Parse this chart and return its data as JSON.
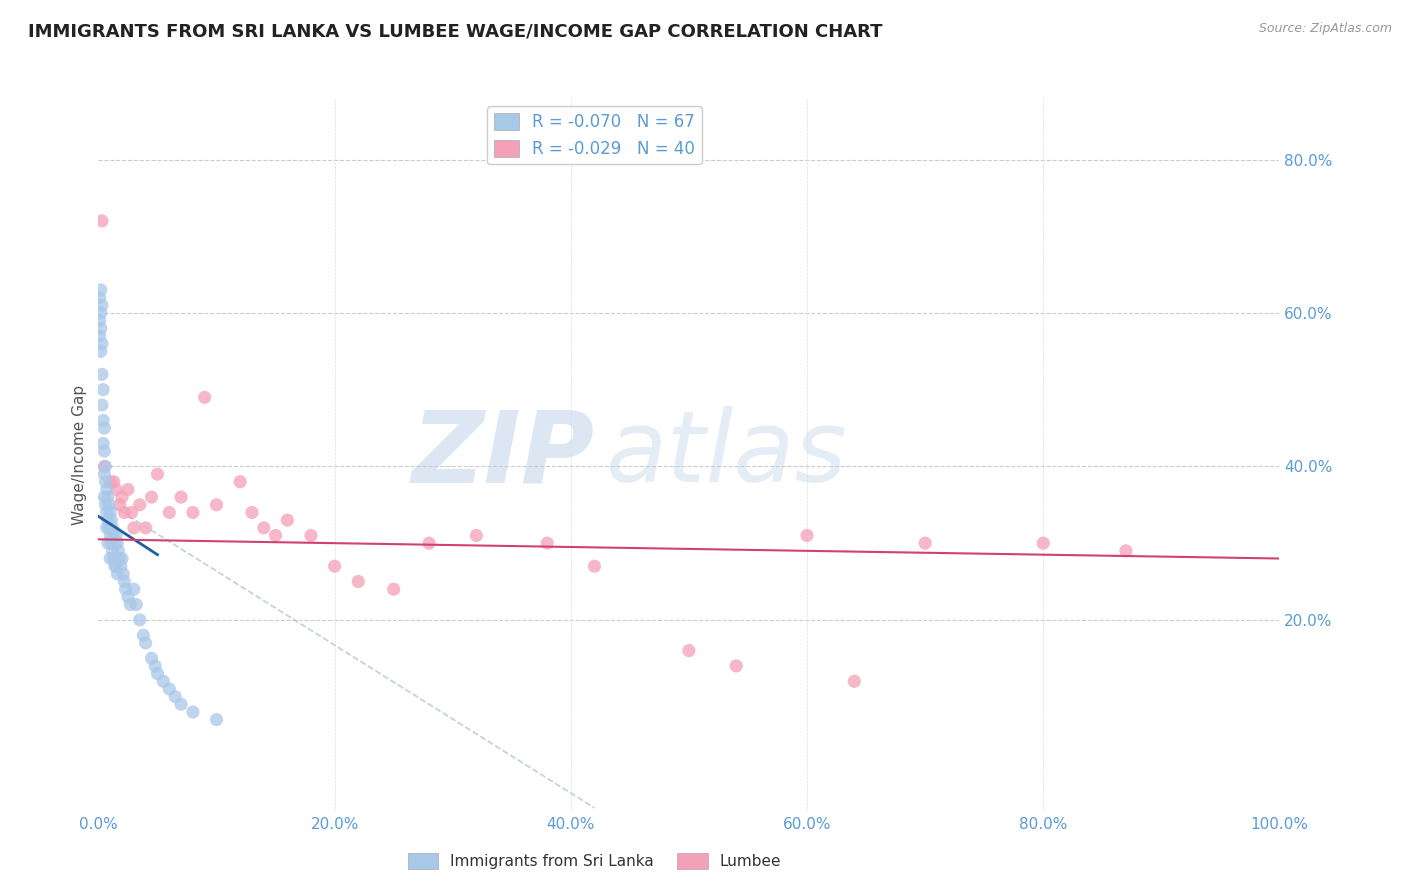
{
  "title": "IMMIGRANTS FROM SRI LANKA VS LUMBEE WAGE/INCOME GAP CORRELATION CHART",
  "source": "Source: ZipAtlas.com",
  "ylabel": "Wage/Income Gap",
  "xlim": [
    0,
    1.0
  ],
  "ylim": [
    -0.05,
    0.88
  ],
  "x_ticks": [
    0.0,
    0.2,
    0.4,
    0.6,
    0.8,
    1.0
  ],
  "x_tick_labels": [
    "0.0%",
    "20.0%",
    "40.0%",
    "60.0%",
    "80.0%",
    "100.0%"
  ],
  "y_ticks": [
    0.0,
    0.2,
    0.4,
    0.6,
    0.8
  ],
  "y_tick_labels_left": [
    "",
    "",
    "",
    "",
    ""
  ],
  "right_y_ticks": [
    0.2,
    0.4,
    0.6,
    0.8
  ],
  "right_y_tick_labels": [
    "20.0%",
    "40.0%",
    "60.0%",
    "80.0%"
  ],
  "legend_r1": "R = -0.070",
  "legend_n1": "N = 67",
  "legend_r2": "R = -0.029",
  "legend_n2": "N = 40",
  "blue_color": "#a8c8e8",
  "pink_color": "#f4a0b8",
  "trend_blue": "#2060a0",
  "trend_pink": "#d04070",
  "trend_gray": "#b0c4d8",
  "title_color": "#222222",
  "axis_label_color": "#5b9bd5",
  "blue_scatter_x": [
    0.001,
    0.001,
    0.001,
    0.002,
    0.002,
    0.002,
    0.002,
    0.003,
    0.003,
    0.003,
    0.003,
    0.004,
    0.004,
    0.004,
    0.005,
    0.005,
    0.005,
    0.005,
    0.006,
    0.006,
    0.006,
    0.007,
    0.007,
    0.007,
    0.008,
    0.008,
    0.008,
    0.009,
    0.009,
    0.01,
    0.01,
    0.01,
    0.011,
    0.011,
    0.012,
    0.012,
    0.013,
    0.013,
    0.014,
    0.014,
    0.015,
    0.015,
    0.016,
    0.016,
    0.017,
    0.018,
    0.019,
    0.02,
    0.021,
    0.022,
    0.023,
    0.025,
    0.027,
    0.03,
    0.032,
    0.035,
    0.038,
    0.04,
    0.045,
    0.048,
    0.05,
    0.055,
    0.06,
    0.065,
    0.07,
    0.08,
    0.1
  ],
  "blue_scatter_y": [
    0.62,
    0.59,
    0.57,
    0.63,
    0.6,
    0.58,
    0.55,
    0.61,
    0.56,
    0.52,
    0.48,
    0.5,
    0.46,
    0.43,
    0.45,
    0.42,
    0.39,
    0.36,
    0.4,
    0.38,
    0.35,
    0.37,
    0.34,
    0.32,
    0.36,
    0.33,
    0.3,
    0.35,
    0.32,
    0.34,
    0.31,
    0.28,
    0.33,
    0.3,
    0.32,
    0.29,
    0.31,
    0.28,
    0.3,
    0.27,
    0.31,
    0.27,
    0.3,
    0.26,
    0.29,
    0.28,
    0.27,
    0.28,
    0.26,
    0.25,
    0.24,
    0.23,
    0.22,
    0.24,
    0.22,
    0.2,
    0.18,
    0.17,
    0.15,
    0.14,
    0.13,
    0.12,
    0.11,
    0.1,
    0.09,
    0.08,
    0.07
  ],
  "pink_scatter_x": [
    0.003,
    0.005,
    0.01,
    0.013,
    0.015,
    0.018,
    0.02,
    0.022,
    0.025,
    0.028,
    0.03,
    0.035,
    0.04,
    0.045,
    0.05,
    0.06,
    0.07,
    0.08,
    0.09,
    0.1,
    0.12,
    0.13,
    0.14,
    0.15,
    0.16,
    0.18,
    0.2,
    0.22,
    0.25,
    0.28,
    0.32,
    0.38,
    0.42,
    0.5,
    0.54,
    0.6,
    0.64,
    0.7,
    0.8,
    0.87
  ],
  "pink_scatter_y": [
    0.72,
    0.4,
    0.38,
    0.38,
    0.37,
    0.35,
    0.36,
    0.34,
    0.37,
    0.34,
    0.32,
    0.35,
    0.32,
    0.36,
    0.39,
    0.34,
    0.36,
    0.34,
    0.49,
    0.35,
    0.38,
    0.34,
    0.32,
    0.31,
    0.33,
    0.31,
    0.27,
    0.25,
    0.24,
    0.3,
    0.31,
    0.3,
    0.27,
    0.16,
    0.14,
    0.31,
    0.12,
    0.3,
    0.3,
    0.29
  ],
  "blue_trend_x": [
    0.0,
    0.05
  ],
  "blue_trend_y": [
    0.335,
    0.285
  ],
  "pink_trend_x": [
    0.0,
    1.0
  ],
  "pink_trend_y": [
    0.305,
    0.28
  ],
  "gray_trend_x": [
    0.0,
    0.42
  ],
  "gray_trend_y": [
    0.36,
    -0.045
  ]
}
